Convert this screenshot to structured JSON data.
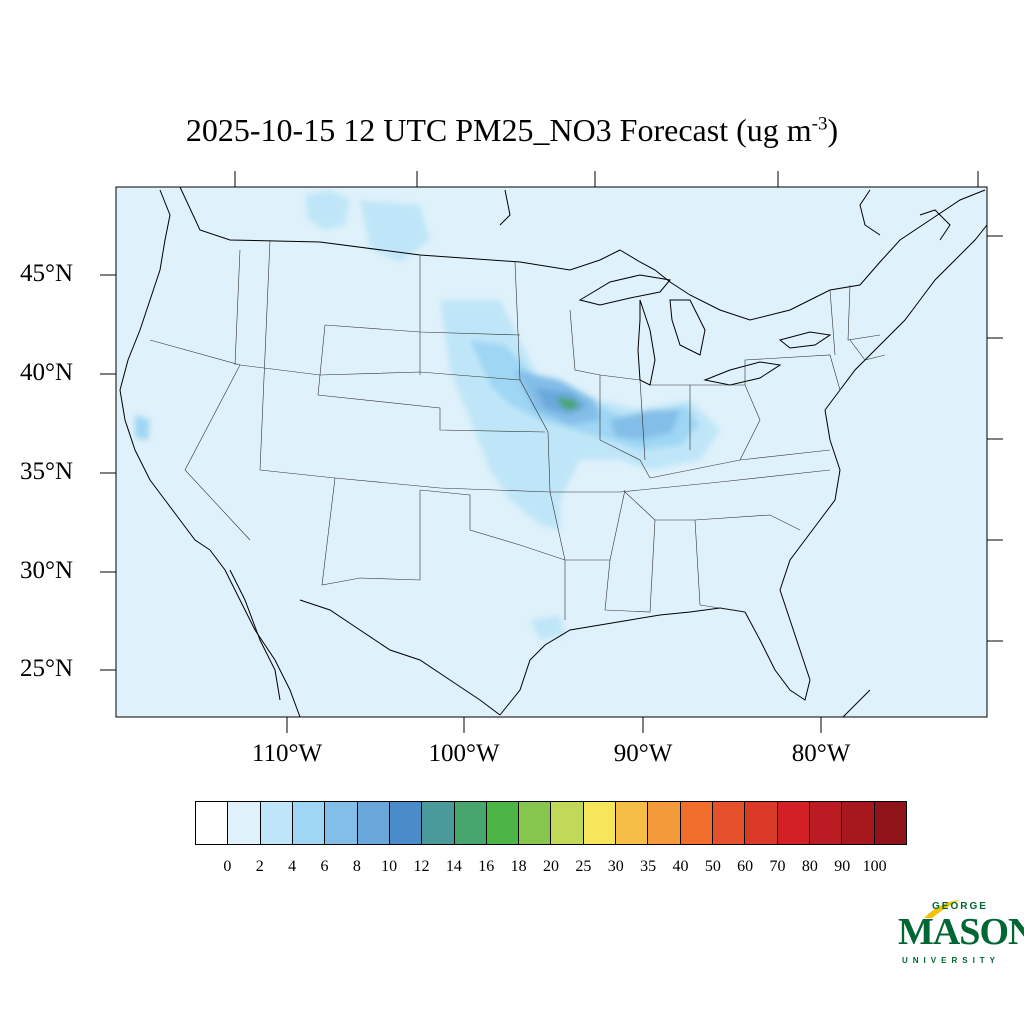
{
  "title": {
    "main": "2025-10-15 12 UTC PM25_NO3 Forecast (ug m",
    "superscript": "-3",
    "close": ")"
  },
  "map": {
    "background_color": "#dff1fb",
    "lat_labels": [
      "45°N",
      "40°N",
      "35°N",
      "30°N",
      "25°N"
    ],
    "lon_labels": [
      "110°W",
      "100°W",
      "90°W",
      "80°W"
    ]
  },
  "colorbar": {
    "colors": [
      "#ffffff",
      "#dff1fb",
      "#bfe6f8",
      "#9fd6f4",
      "#83bee8",
      "#6aa8dc",
      "#4a8bc9",
      "#4a9a9a",
      "#46a66e",
      "#4bb545",
      "#86c64f",
      "#c2d858",
      "#f7e65c",
      "#f6be47",
      "#f59a3a",
      "#f16e2c",
      "#e6502a",
      "#dc3a29",
      "#d22026",
      "#bb1c24",
      "#a7171e",
      "#8f141a"
    ],
    "labels": [
      "0",
      "2",
      "4",
      "6",
      "8",
      "10",
      "12",
      "14",
      "16",
      "18",
      "20",
      "25",
      "30",
      "35",
      "40",
      "50",
      "60",
      "70",
      "80",
      "90",
      "100"
    ]
  },
  "logo": {
    "top": "GEORGE",
    "main": "MASON",
    "bottom": "UNIVERSITY"
  }
}
